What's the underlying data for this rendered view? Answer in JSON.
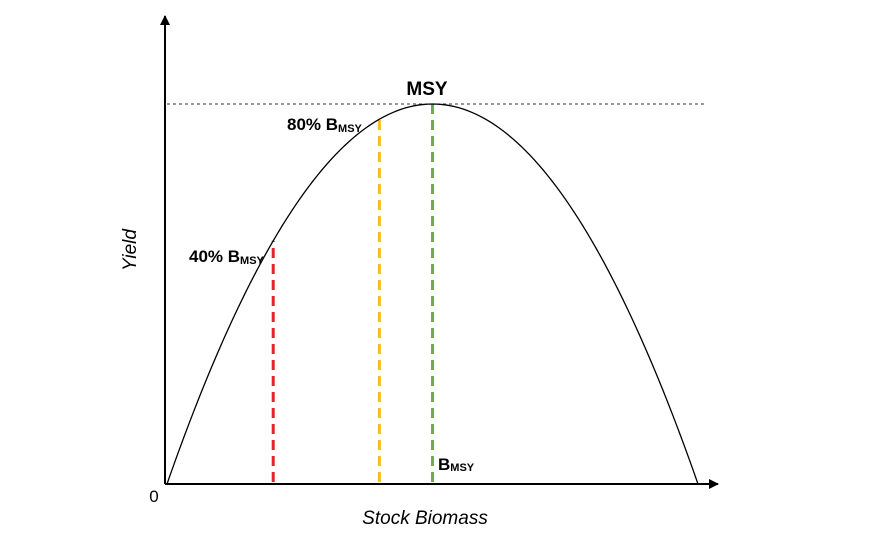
{
  "chart_data": {
    "type": "line",
    "xlabel": "Stock Biomass",
    "ylabel": "Yield",
    "origin_label": "0",
    "curve": "parabola",
    "xlim": [
      0,
      1
    ],
    "ylim": [
      0,
      1
    ],
    "series": [
      {
        "x": [
          0,
          0.1,
          0.2,
          0.3,
          0.4,
          0.5,
          0.6,
          0.7,
          0.8,
          0.9,
          1.0
        ],
        "y": [
          0,
          0.36,
          0.64,
          0.84,
          0.96,
          1.0,
          0.96,
          0.84,
          0.64,
          0.36,
          0
        ]
      }
    ],
    "reference_lines": [
      {
        "id": "msy",
        "orientation": "horizontal",
        "y": 1.0,
        "style": "dotted",
        "color": "#333333"
      },
      {
        "id": "bmsy40",
        "orientation": "vertical",
        "x": 0.2,
        "style": "dashed",
        "color": "#e8202a"
      },
      {
        "id": "bmsy80",
        "orientation": "vertical",
        "x": 0.4,
        "style": "dashed",
        "color": "#f5bd1f"
      },
      {
        "id": "bmsy",
        "orientation": "vertical",
        "x": 0.5,
        "style": "dashed",
        "color": "#70ad47"
      }
    ],
    "annotations": {
      "msy": "MSY",
      "bmsy_b": "B",
      "bmsy_sub": "MSY",
      "p80_main": "80% B",
      "p80_sub": "MSY",
      "p40_main": "40% B",
      "p40_sub": "MSY"
    }
  }
}
